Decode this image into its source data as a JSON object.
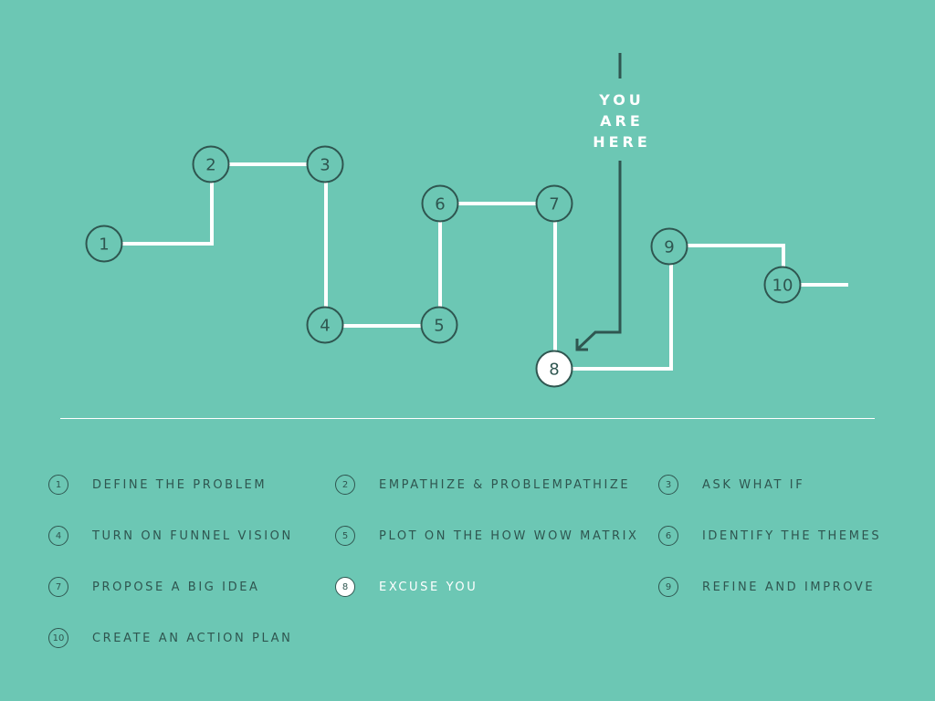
{
  "marker": {
    "lines": [
      "YOU",
      "ARE",
      "HERE"
    ]
  },
  "steps": [
    {
      "num": "1",
      "label": "DEFINE THE PROBLEM"
    },
    {
      "num": "2",
      "label": "EMPATHIZE & PROBLEMPATHIZE"
    },
    {
      "num": "3",
      "label": "ASK WHAT IF"
    },
    {
      "num": "4",
      "label": "TURN ON FUNNEL VISION"
    },
    {
      "num": "5",
      "label": "PLOT ON THE HOW WOW MATRIX"
    },
    {
      "num": "6",
      "label": "IDENTIFY THE THEMES"
    },
    {
      "num": "7",
      "label": "PROPOSE A BIG IDEA"
    },
    {
      "num": "8",
      "label": "EXCUSE YOU",
      "current": true
    },
    {
      "num": "9",
      "label": "REFINE AND IMPROVE"
    },
    {
      "num": "10",
      "label": "CREATE AN ACTION PLAN"
    }
  ],
  "colors": {
    "background": "#6cc7b4",
    "ink": "#2f5650",
    "highlight": "#ffffff"
  }
}
